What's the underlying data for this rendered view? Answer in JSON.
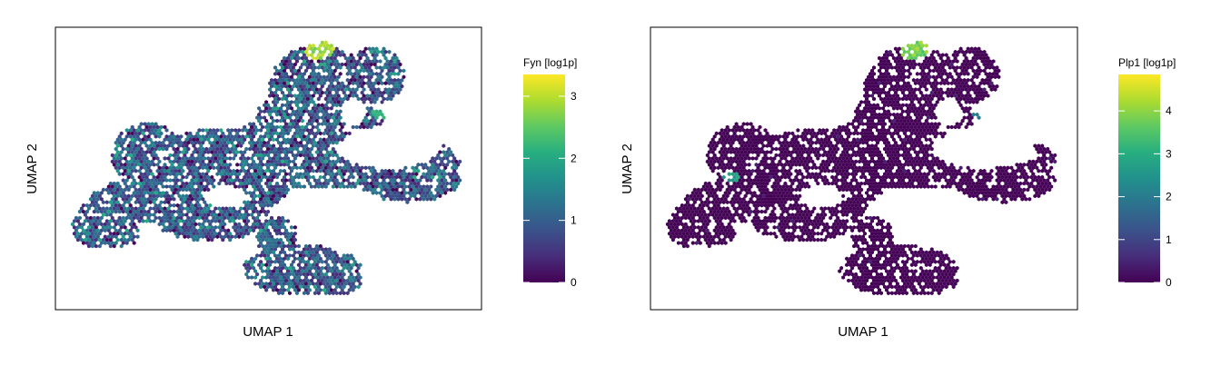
{
  "chart_data": [
    {
      "type": "heatmap",
      "subtype": "hexbin-umap",
      "xlabel": "UMAP 1",
      "ylabel": "UMAP 2",
      "legend_title": "Fyn [log1p]",
      "colormap": "viridis",
      "color_range": [
        0,
        3.35
      ],
      "colorbar_ticks": [
        0,
        1,
        2,
        3
      ],
      "tick_labels": [
        "0",
        "1",
        "2",
        "3"
      ],
      "typical_value": 0.9,
      "hotspots": [
        {
          "region": "top-right tip",
          "value": 3.2
        },
        {
          "region": "right edge of upper lobe",
          "value": 2.4
        }
      ]
    },
    {
      "type": "heatmap",
      "subtype": "hexbin-umap",
      "xlabel": "UMAP 1",
      "ylabel": "UMAP 2",
      "legend_title": "Plp1 [log1p]",
      "colormap": "viridis",
      "color_range": [
        0,
        4.85
      ],
      "colorbar_ticks": [
        0,
        1,
        2,
        3,
        4
      ],
      "tick_labels": [
        "0",
        "1",
        "2",
        "3",
        "4"
      ],
      "typical_value": 0.05,
      "hotspots": [
        {
          "region": "top-right tip",
          "value": 4.3
        },
        {
          "region": "left small cluster",
          "value": 3.0
        },
        {
          "region": "right edge of upper lobe",
          "value": 2.2
        }
      ]
    }
  ],
  "panels": [
    {
      "xlabel": "UMAP 1",
      "ylabel": "UMAP 2",
      "legend_title": "Fyn [log1p]",
      "ticks": [
        "0",
        "1",
        "2",
        "3"
      ]
    },
    {
      "xlabel": "UMAP 1",
      "ylabel": "UMAP 2",
      "legend_title": "Plp1 [log1p]",
      "ticks": [
        "0",
        "1",
        "2",
        "3",
        "4"
      ]
    }
  ]
}
